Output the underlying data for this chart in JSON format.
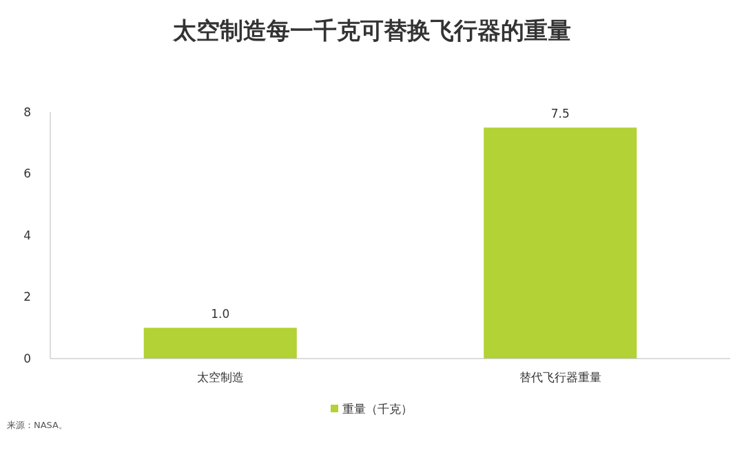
{
  "chart_data": {
    "type": "bar",
    "title": "太空制造每一千克可替换飞行器的重量",
    "categories": [
      "太空制造",
      "替代飞行器重量"
    ],
    "series": [
      {
        "name": "重量（千克）",
        "color": "#b2d235",
        "values": [
          1.0,
          7.5
        ],
        "value_labels": [
          "1.0",
          "7.5"
        ]
      }
    ],
    "ylim": [
      0,
      8
    ],
    "yticks": [
      0,
      2,
      4,
      6,
      8
    ],
    "grid": false,
    "legend": "bottom",
    "annotations": [
      "来源：NASA。"
    ]
  }
}
